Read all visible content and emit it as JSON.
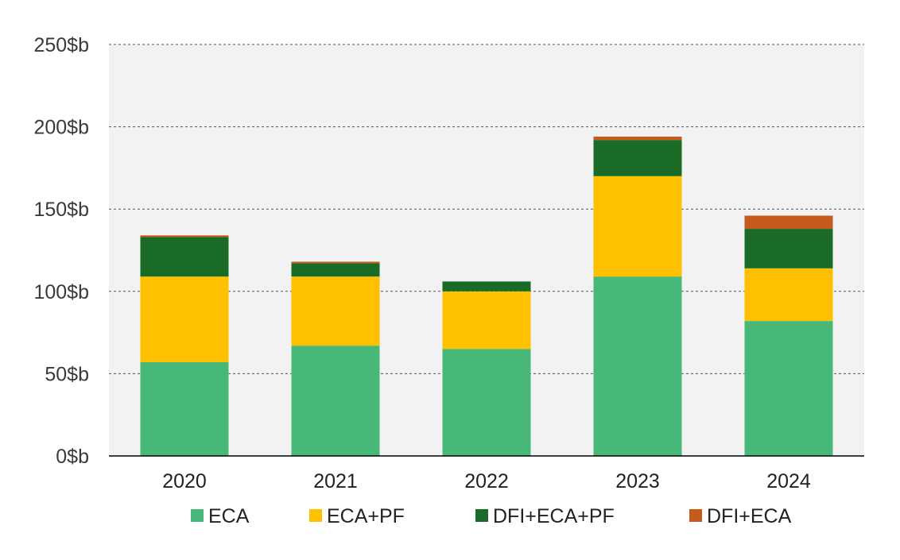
{
  "chart_data": {
    "type": "bar",
    "stacked": true,
    "categories": [
      "2020",
      "2021",
      "2022",
      "2023",
      "2024"
    ],
    "series": [
      {
        "name": "ECA",
        "color": "#47b877",
        "values": [
          57,
          67,
          65,
          109,
          82
        ]
      },
      {
        "name": "ECA+PF",
        "color": "#ffc000",
        "values": [
          52,
          42,
          35,
          61,
          32
        ]
      },
      {
        "name": "DFI+ECA+PF",
        "color": "#1a6b26",
        "values": [
          24,
          8,
          6,
          22,
          24
        ]
      },
      {
        "name": "DFI+ECA",
        "color": "#c55a1a",
        "values": [
          1,
          1,
          0,
          2,
          8
        ]
      }
    ],
    "y_ticks": [
      "0$b",
      "50$b",
      "100$b",
      "150$b",
      "200$b",
      "250$b"
    ],
    "ylim": [
      0,
      250
    ],
    "grid": true,
    "legend_position": "bottom",
    "plot_background": "#f2f2f2"
  }
}
